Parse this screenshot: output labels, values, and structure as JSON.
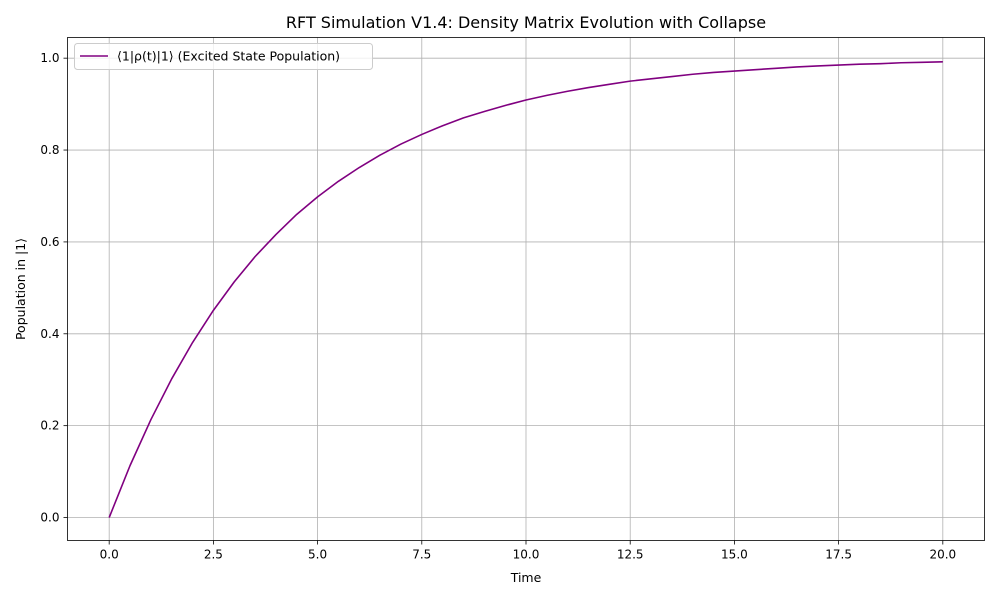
{
  "chart_data": {
    "type": "line",
    "title": "RFT Simulation V1.4: Density Matrix Evolution with Collapse",
    "xlabel": "Time",
    "ylabel": "Population in |1⟩",
    "xlim": [
      -1.0,
      21.0
    ],
    "ylim": [
      -0.05,
      1.045
    ],
    "xticks": [
      0.0,
      2.5,
      5.0,
      7.5,
      10.0,
      12.5,
      15.0,
      17.5,
      20.0
    ],
    "xtick_labels": [
      "0.0",
      "2.5",
      "5.0",
      "7.5",
      "10.0",
      "12.5",
      "15.0",
      "17.5",
      "20.0"
    ],
    "yticks": [
      0.0,
      0.2,
      0.4,
      0.6,
      0.8,
      1.0
    ],
    "ytick_labels": [
      "0.0",
      "0.2",
      "0.4",
      "0.6",
      "0.8",
      "1.0"
    ],
    "grid": true,
    "legend_position": "top-left",
    "series": [
      {
        "name": "⟨1|ρ(t)|1⟩ (Excited State Population)",
        "color": "#800080",
        "x": [
          0,
          0.5,
          1,
          1.5,
          2,
          2.5,
          3,
          3.5,
          4,
          4.5,
          5,
          5.5,
          6,
          6.5,
          7,
          7.5,
          8,
          8.5,
          9,
          9.5,
          10,
          10.5,
          11,
          11.5,
          12,
          12.5,
          13,
          13.5,
          14,
          14.5,
          15,
          15.5,
          16,
          16.5,
          17,
          17.5,
          18,
          18.5,
          19,
          19.5,
          20
        ],
        "y": [
          0.0,
          0.113,
          0.213,
          0.302,
          0.381,
          0.451,
          0.513,
          0.568,
          0.616,
          0.66,
          0.698,
          0.732,
          0.762,
          0.789,
          0.813,
          0.834,
          0.853,
          0.87,
          0.884,
          0.897,
          0.909,
          0.919,
          0.928,
          0.936,
          0.943,
          0.95,
          0.955,
          0.96,
          0.965,
          0.969,
          0.972,
          0.975,
          0.978,
          0.981,
          0.983,
          0.985,
          0.987,
          0.988,
          0.99,
          0.991,
          0.992
        ]
      }
    ]
  }
}
